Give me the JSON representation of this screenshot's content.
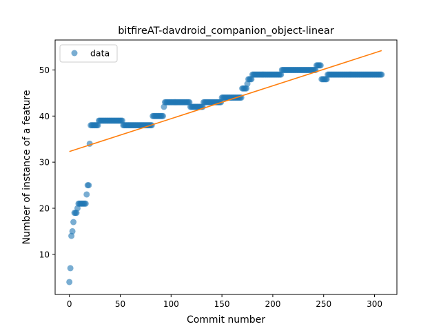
{
  "chart_data": {
    "type": "scatter",
    "title": "bitfireAT-davdroid_companion_object-linear",
    "xlabel": "Commit number",
    "ylabel": "Number of instance of a feature",
    "xlim": [
      -14,
      322
    ],
    "ylim": [
      1.3,
      56.5
    ],
    "xticks": [
      0,
      50,
      100,
      150,
      200,
      250,
      300
    ],
    "yticks": [
      10,
      20,
      30,
      40,
      50
    ],
    "grid": false,
    "legend": {
      "position": "top-left",
      "entries": [
        "data"
      ]
    },
    "colors": {
      "data": "#1f77b4",
      "fit": "#ff7f0e"
    },
    "series": [
      {
        "name": "data",
        "style": "markers",
        "segments": [
          [
            0,
            4
          ],
          [
            1,
            7
          ],
          [
            2,
            14
          ],
          [
            3,
            15
          ],
          [
            4,
            17
          ],
          [
            5,
            19
          ],
          [
            6,
            19
          ],
          [
            7,
            19
          ],
          [
            8,
            20
          ],
          [
            9,
            21
          ],
          [
            10,
            21
          ],
          [
            11,
            21
          ],
          [
            12,
            21
          ],
          [
            13,
            21
          ],
          [
            14,
            21
          ],
          [
            15,
            21
          ],
          [
            16,
            21
          ],
          [
            17,
            23
          ],
          [
            18,
            25
          ],
          [
            19,
            25
          ],
          [
            20,
            34
          ],
          [
            [
              21,
              28
            ],
            38
          ],
          [
            [
              29,
              52
            ],
            39
          ],
          [
            [
              53,
              81
            ],
            38
          ],
          [
            [
              82,
              92
            ],
            40
          ],
          [
            93,
            42
          ],
          [
            [
              94,
              118
            ],
            43
          ],
          [
            [
              119,
              131
            ],
            42
          ],
          [
            [
              132,
              149
            ],
            43
          ],
          [
            [
              150,
              169
            ],
            44
          ],
          [
            [
              170,
              174
            ],
            46
          ],
          [
            175,
            47
          ],
          [
            [
              176,
              179
            ],
            48
          ],
          [
            [
              180,
              208
            ],
            49
          ],
          [
            [
              209,
              242
            ],
            50
          ],
          [
            [
              243,
              247
            ],
            51
          ],
          [
            [
              248,
              253
            ],
            48
          ],
          [
            [
              254,
              307
            ],
            49
          ]
        ]
      },
      {
        "name": "",
        "style": "line",
        "x": [
          0,
          307
        ],
        "y": [
          32.3,
          54.2
        ]
      }
    ]
  }
}
